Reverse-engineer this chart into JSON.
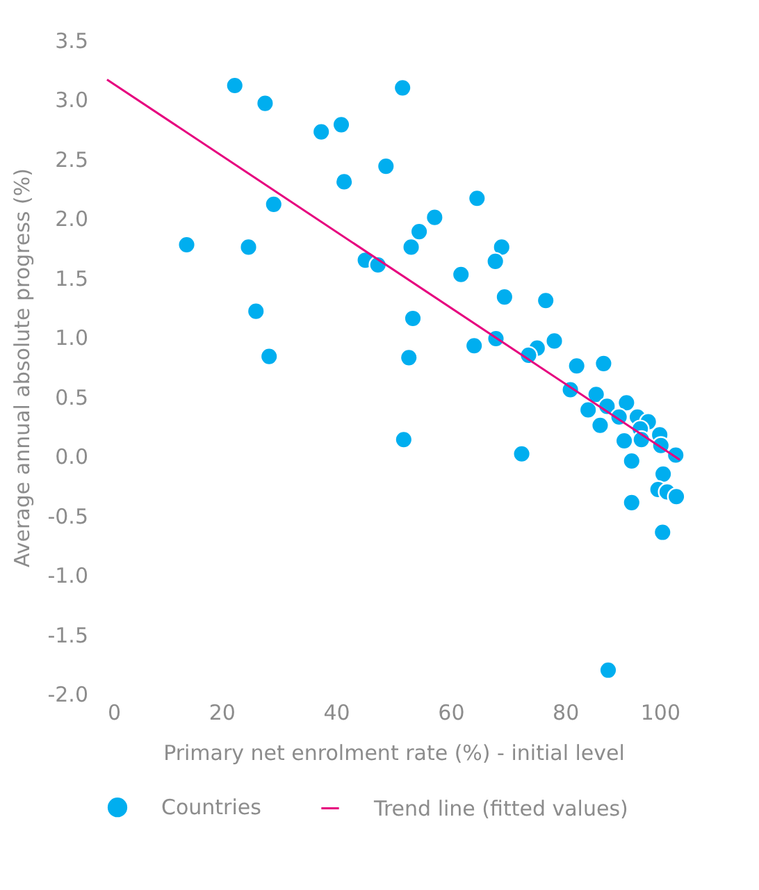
{
  "chart_data": {
    "type": "scatter",
    "xlabel": "Primary net enrolment rate (%) - initial level",
    "ylabel": "Average annual absolute progress (%)",
    "xlim": [
      0,
      100
    ],
    "ylim": [
      -2.0,
      3.5
    ],
    "xticks": [
      0,
      20,
      40,
      60,
      80,
      100
    ],
    "yticks": [
      {
        "value": -2,
        "label": "-2.0"
      },
      {
        "value": -1.5,
        "label": "-1.5"
      },
      {
        "value": -1,
        "label": "-1.0"
      },
      {
        "value": -0.5,
        "label": "-0.5"
      },
      {
        "value": 0,
        "label": "0.0"
      },
      {
        "value": 0.5,
        "label": "0.5"
      },
      {
        "value": 1,
        "label": "1.0"
      },
      {
        "value": 1.5,
        "label": "1.5"
      },
      {
        "value": 2,
        "label": "2.0"
      },
      {
        "value": 2.5,
        "label": "2.5"
      },
      {
        "value": 3,
        "label": "3.0"
      },
      {
        "value": 3.5,
        "label": "3.5"
      }
    ],
    "grid": false,
    "legend": "bottom",
    "series": [
      {
        "name": "Countries",
        "marker": "circle",
        "color": "#00aeef",
        "x": [
          22.3,
          27.6,
          51.6,
          37.4,
          40.9,
          48.7,
          41.4,
          29.1,
          13.9,
          24.7,
          45.1,
          47.3,
          53.1,
          54.5,
          26.0,
          53.4,
          28.3,
          52.7,
          51.8,
          64.6,
          57.2,
          68.9,
          67.8,
          61.8,
          69.4,
          76.6,
          64.1,
          67.9,
          75.1,
          73.6,
          78.1,
          82.0,
          86.7,
          80.9,
          72.4,
          85.4,
          84.0,
          87.3,
          86.1,
          90.7,
          89.9,
          89.4,
          92.6,
          94.5,
          93.1,
          90.3,
          92.6,
          93.3,
          96.5,
          96.7,
          91.6,
          99.3,
          97.1,
          96.2,
          97.8,
          99.4,
          91.6,
          97.0,
          87.5
        ],
        "values": [
          3.12,
          2.97,
          3.1,
          2.73,
          2.79,
          2.44,
          2.31,
          2.12,
          1.78,
          1.76,
          1.65,
          1.61,
          1.76,
          1.89,
          1.22,
          1.16,
          0.84,
          0.83,
          0.14,
          2.17,
          2.01,
          1.76,
          1.64,
          1.53,
          1.34,
          1.31,
          0.93,
          0.99,
          0.91,
          0.85,
          0.97,
          0.76,
          0.78,
          0.56,
          0.02,
          0.52,
          0.39,
          0.42,
          0.26,
          0.45,
          null,
          0.33,
          0.33,
          0.29,
          0.23,
          0.13,
          null,
          0.14,
          0.18,
          0.09,
          -0.04,
          0.01,
          -0.15,
          -0.28,
          -0.3,
          -0.34,
          -0.39,
          -0.64,
          -1.8
        ]
      },
      {
        "name": "Trend line (fitted values)",
        "type": "line",
        "marker": "none",
        "line_style": "solid",
        "color": "#e6007e",
        "x": [
          0,
          100
        ],
        "values": [
          3.17,
          -0.03
        ]
      }
    ]
  }
}
